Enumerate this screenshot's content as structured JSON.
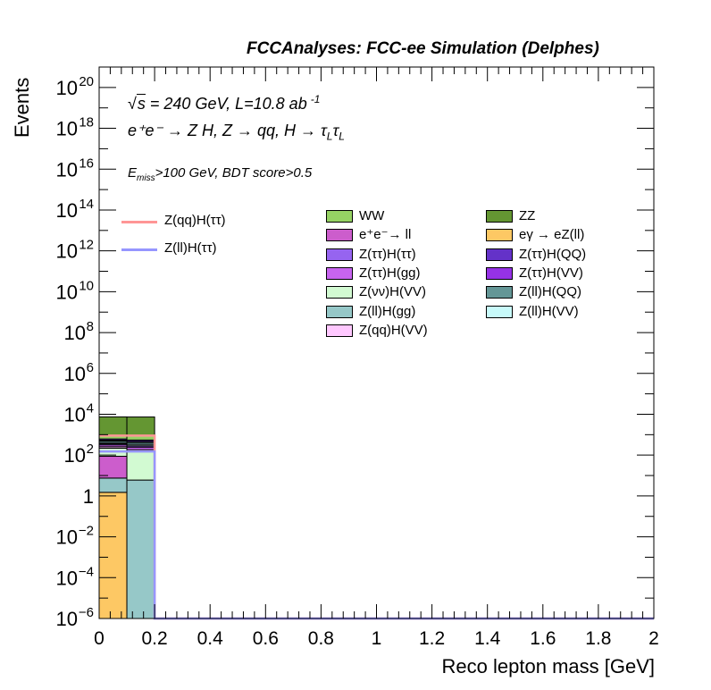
{
  "header": {
    "title": "FCCAnalyses: FCC-ee Simulation (Delphes)"
  },
  "annotations": {
    "sqrt_s": "s",
    "energy_lumi": " = 240 GeV, L=10.8 ab",
    "lumi_exp": "-1",
    "process": "e⁺e⁻ → Z H, Z → qq, H → τ",
    "process_sub1": "L",
    "process_tau2": "τ",
    "process_sub2": "L",
    "selection_E": "E",
    "selection_sub": "miss",
    "selection_rest": ">100 GeV, BDT score>0.5"
  },
  "chart_data": {
    "type": "bar",
    "stacked": true,
    "xlabel": "Reco lepton mass [GeV]",
    "ylabel": "Events",
    "xlim": [
      0,
      2
    ],
    "ylim": [
      1e-06,
      1e+21
    ],
    "ylog": true,
    "grid": false,
    "bin_edges": [
      0,
      0.1,
      0.2
    ],
    "x_ticks": [
      "0",
      "0.2",
      "0.4",
      "0.6",
      "0.8",
      "1",
      "1.2",
      "1.4",
      "1.6",
      "1.8",
      "2"
    ],
    "y_ticks": [
      {
        "value": 1e-06,
        "base": "10",
        "exp": "−6"
      },
      {
        "value": 0.0001,
        "base": "10",
        "exp": "−4"
      },
      {
        "value": 0.01,
        "base": "10",
        "exp": "−2"
      },
      {
        "value": 1,
        "base": "1",
        "exp": ""
      },
      {
        "value": 100.0,
        "base": "10",
        "exp": "2"
      },
      {
        "value": 10000.0,
        "base": "10",
        "exp": "4"
      },
      {
        "value": 1000000.0,
        "base": "10",
        "exp": "6"
      },
      {
        "value": 100000000.0,
        "base": "10",
        "exp": "8"
      },
      {
        "value": 10000000000.0,
        "base": "10",
        "exp": "10"
      },
      {
        "value": 1000000000000.0,
        "base": "10",
        "exp": "12"
      },
      {
        "value": 100000000000000.0,
        "base": "10",
        "exp": "14"
      },
      {
        "value": 1e+16,
        "base": "10",
        "exp": "16"
      },
      {
        "value": 1e+18,
        "base": "10",
        "exp": "18"
      },
      {
        "value": 1e+20,
        "base": "10",
        "exp": "20"
      }
    ],
    "stack_series": [
      {
        "name": "eγ → eZ(ll)",
        "color": "#fdc864",
        "values": [
          1.5,
          0
        ]
      },
      {
        "name": "Z(ll)H(gg)",
        "color": "#96c8c8",
        "values": [
          6.0,
          6.0
        ]
      },
      {
        "name": "e⁺e⁻→ ll",
        "color": "#cc5dcc",
        "values": [
          80,
          0
        ]
      },
      {
        "name": "Z(νν)H(VV)",
        "color": "#d2fad2",
        "values": [
          130,
          140
        ]
      },
      {
        "name": "Z(qq)H(VV)",
        "color": "#ffc8ff",
        "values": [
          40,
          40
        ]
      },
      {
        "name": "Z(ττ)H(gg)",
        "color": "#c864f0",
        "values": [
          60,
          60
        ]
      },
      {
        "name": "Z(ττ)H(ττ)",
        "color": "#9664f0",
        "values": [
          40,
          40
        ]
      },
      {
        "name": "Z(ll)H(VV)",
        "color": "#c8fafa",
        "values": [
          50,
          50
        ]
      },
      {
        "name": "Z(ll)H(QQ)",
        "color": "#649696",
        "values": [
          80,
          80
        ]
      },
      {
        "name": "Z(ττ)H(VV)",
        "color": "#9632e6",
        "values": [
          50,
          50
        ]
      },
      {
        "name": "Z(ττ)H(QQ)",
        "color": "#6432c8",
        "values": [
          80,
          80
        ]
      },
      {
        "name": "WW",
        "color": "#96d264",
        "values": [
          300,
          300
        ]
      },
      {
        "name": "ZZ",
        "color": "#649632",
        "values": [
          6500,
          6500
        ]
      }
    ],
    "line_series": [
      {
        "name": "Z(qq)H(ττ)",
        "color": "#ff9696",
        "values": [
          900,
          900
        ]
      },
      {
        "name": "Z(ll)H(ττ)",
        "color": "#9696ff",
        "values": [
          150,
          150
        ]
      }
    ],
    "legend_placement": "top-center"
  }
}
